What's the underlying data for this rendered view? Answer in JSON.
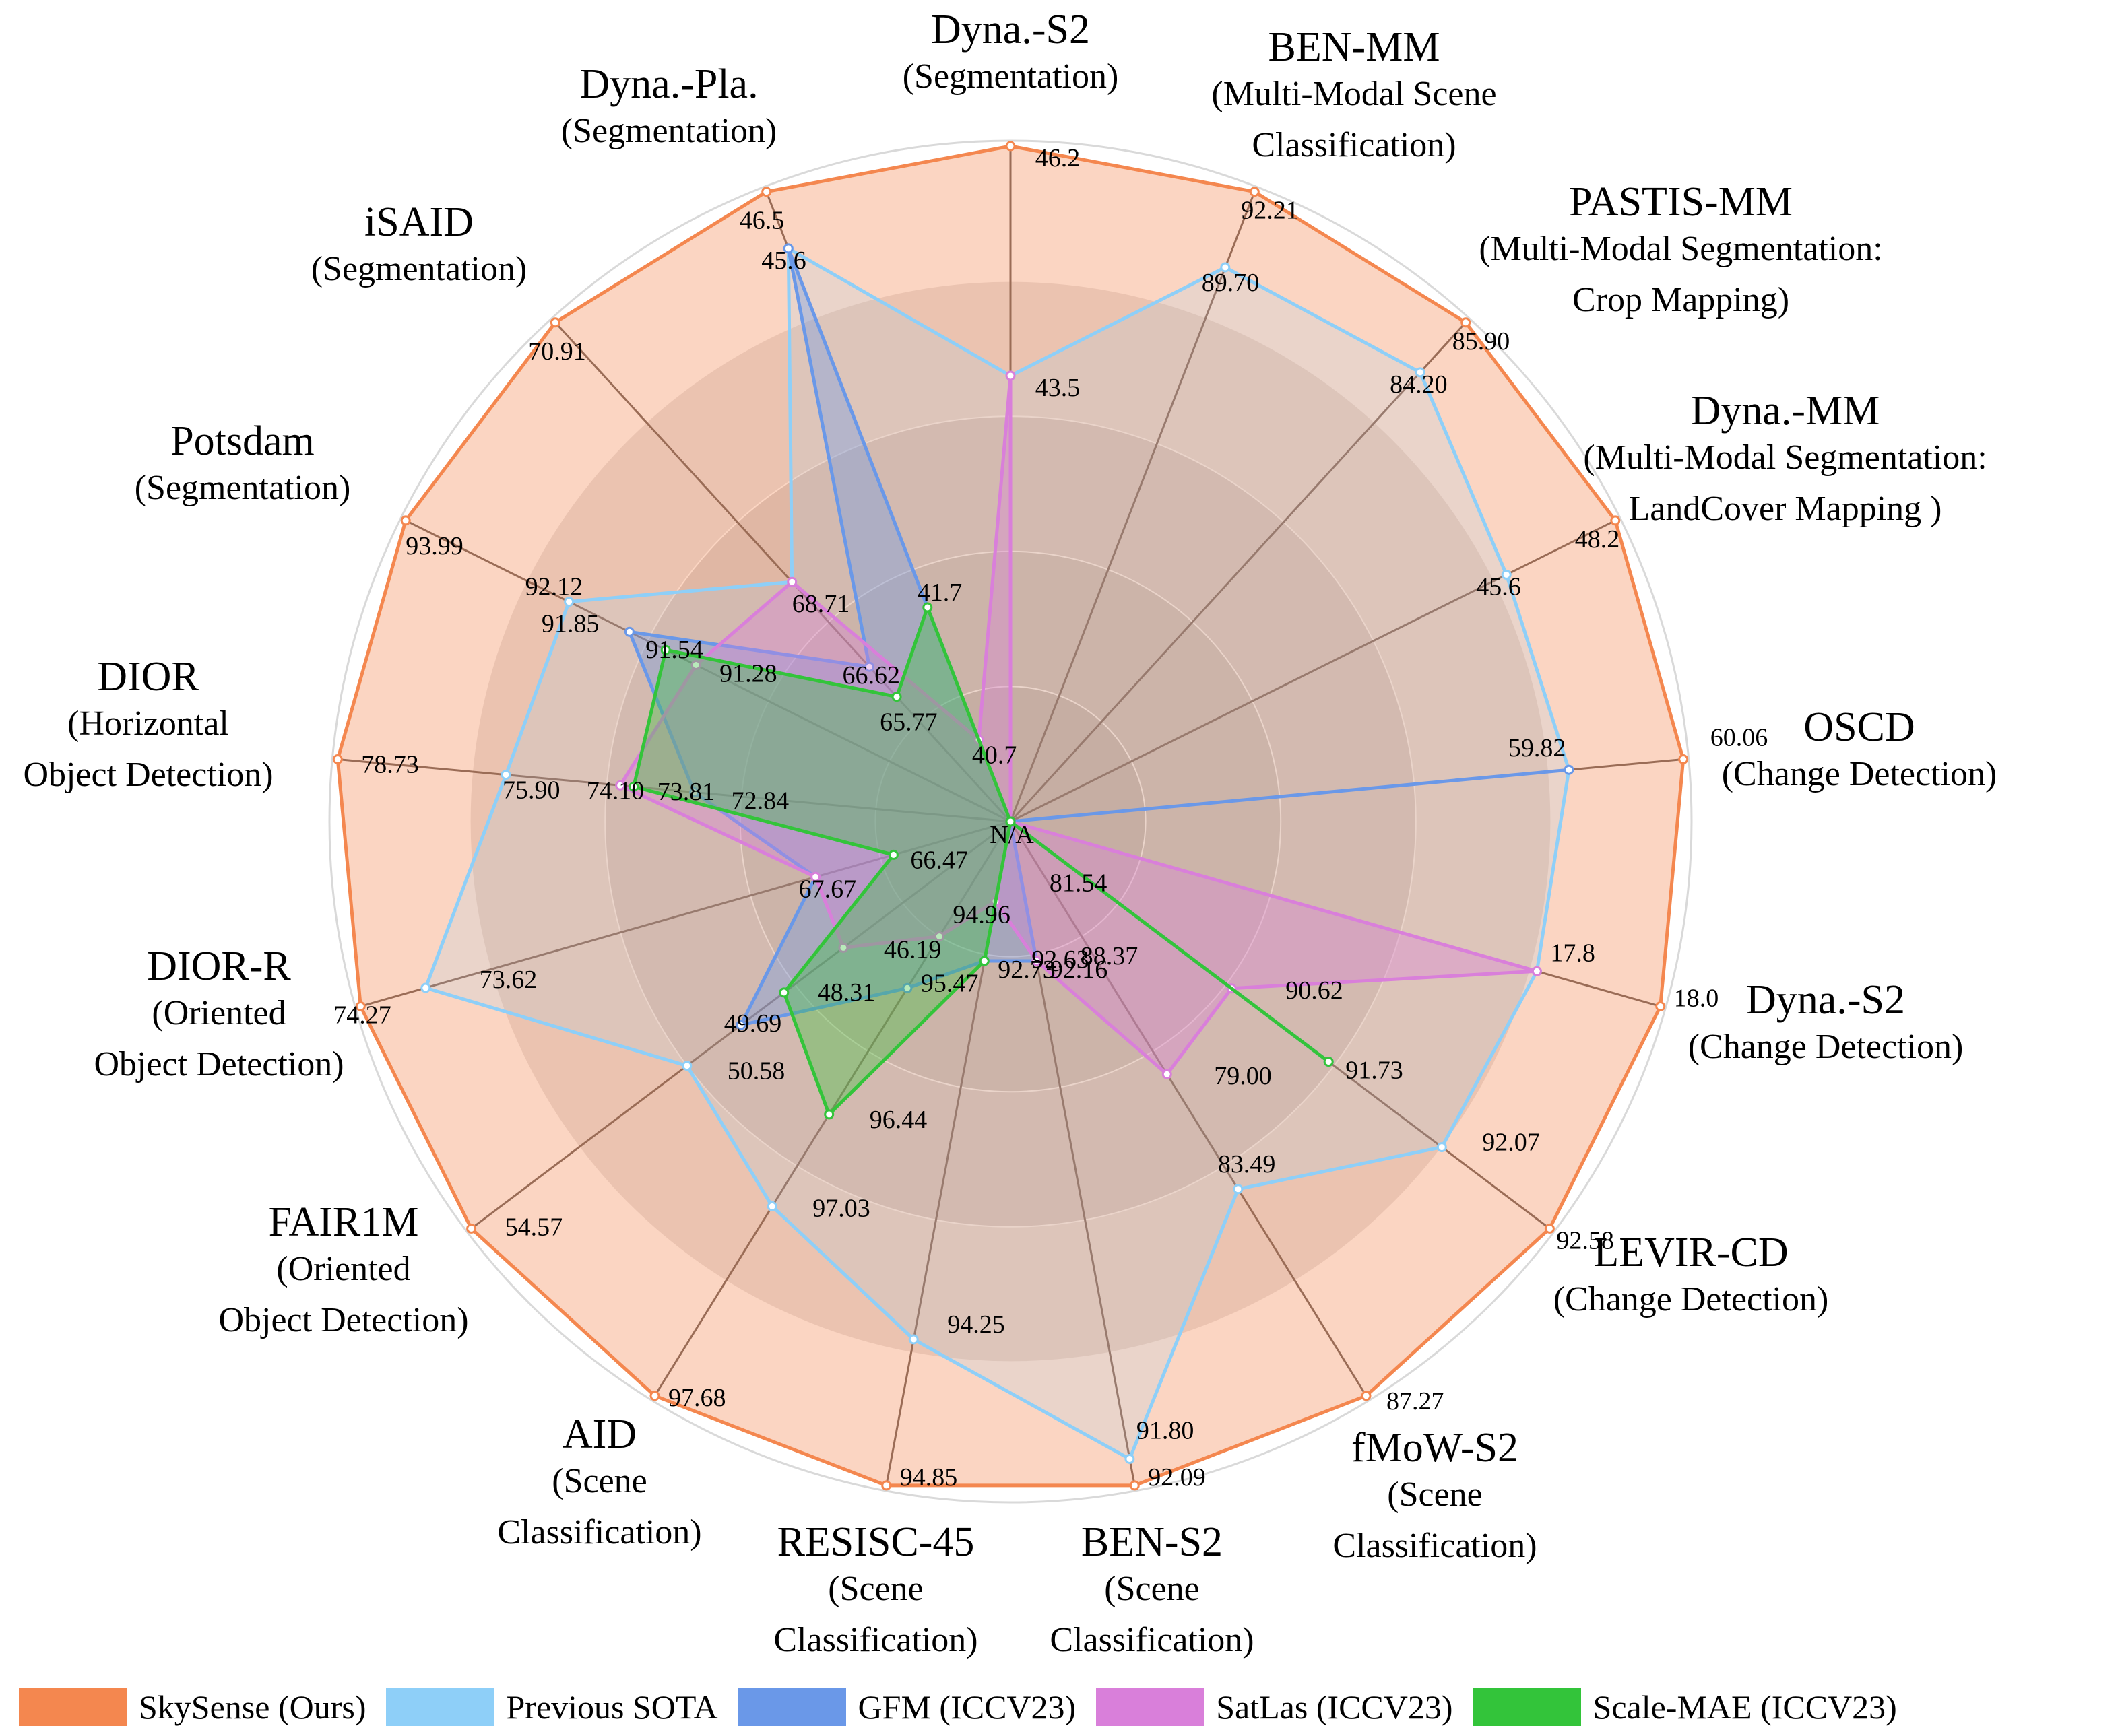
{
  "chart_data": {
    "type": "radar",
    "center_label": "N/A",
    "axes": [
      {
        "name": "Dyna.-S2",
        "task": [
          "(Segmentation)"
        ]
      },
      {
        "name": "BEN-MM",
        "task": [
          "(Multi-Modal Scene",
          "Classification)"
        ]
      },
      {
        "name": "PASTIS-MM",
        "task": [
          "(Multi-Modal Segmentation:",
          "Crop Mapping)"
        ]
      },
      {
        "name": "Dyna.-MM",
        "task": [
          "(Multi-Modal Segmentation:",
          "LandCover Mapping )"
        ]
      },
      {
        "name": "OSCD",
        "task": [
          "(Change Detection)"
        ]
      },
      {
        "name": "Dyna.-S2",
        "task": [
          "(Change Detection)"
        ]
      },
      {
        "name": "LEVIR-CD",
        "task": [
          "(Change Detection)"
        ]
      },
      {
        "name": "fMoW-S2",
        "task": [
          "(Scene",
          "Classification)"
        ]
      },
      {
        "name": "BEN-S2",
        "task": [
          "(Scene",
          "Classification)"
        ]
      },
      {
        "name": "RESISC-45",
        "task": [
          "(Scene",
          "Classification)"
        ]
      },
      {
        "name": "AID",
        "task": [
          "(Scene",
          "Classification)"
        ]
      },
      {
        "name": "FAIR1M",
        "task": [
          "(Oriented",
          "Object Detection)"
        ]
      },
      {
        "name": "DIOR-R",
        "task": [
          "(Oriented",
          "Object Detection)"
        ]
      },
      {
        "name": "DIOR",
        "task": [
          "(Horizontal",
          "Object Detection)"
        ]
      },
      {
        "name": "Potsdam",
        "task": [
          "(Segmentation)"
        ]
      },
      {
        "name": "iSAID",
        "task": [
          "(Segmentation)"
        ]
      },
      {
        "name": "Dyna.-Pla.",
        "task": [
          "(Segmentation)"
        ]
      }
    ],
    "series": [
      {
        "name": "SkySense (Ours)",
        "color": "#F4874F",
        "values": [
          46.2,
          92.21,
          85.9,
          48.2,
          60.06,
          18.0,
          92.58,
          87.27,
          92.09,
          94.85,
          97.68,
          54.57,
          74.27,
          78.73,
          93.99,
          70.91,
          46.5
        ],
        "labels": [
          "46.2",
          "92.21",
          "85.90",
          "48.2",
          "60.06",
          "18.0",
          "92.58",
          "87.27",
          "92.09",
          "94.85",
          "97.68",
          "54.57",
          "74.27",
          "78.73",
          "93.99",
          "70.91",
          "46.5"
        ]
      },
      {
        "name": "Previous SOTA",
        "color": "#8ECFF8",
        "values": [
          43.5,
          89.7,
          84.2,
          45.6,
          59.82,
          17.8,
          92.07,
          83.49,
          91.8,
          94.25,
          97.03,
          50.58,
          73.62,
          75.9,
          92.12,
          68.71,
          45.6
        ],
        "labels": [
          "43.5",
          "89.70",
          "84.20",
          "45.6",
          "59.82",
          "17.8",
          "92.07",
          "83.49",
          "91.80",
          "94.25",
          "97.03",
          "50.58",
          "73.62",
          "75.90",
          "92.12",
          "68.71",
          "45.6"
        ]
      },
      {
        "name": "GFM (ICCV23)",
        "color": "#6A98E8",
        "values": [
          null,
          null,
          null,
          null,
          59.82,
          null,
          91.73,
          null,
          92.16,
          92.73,
          95.47,
          49.69,
          67.67,
          72.84,
          91.85,
          66.62,
          45.6
        ],
        "labels": [
          "",
          "",
          "",
          "",
          "",
          "",
          "91.73",
          "",
          "92.16",
          "92.73",
          "95.47",
          "49.69",
          "67.67",
          "72.84",
          "91.85",
          "66.62",
          ""
        ]
      },
      {
        "name": "SatLas (ICCV23)",
        "color": "#D97FDA",
        "values": [
          43.5,
          null,
          null,
          null,
          null,
          17.8,
          90.62,
          79.0,
          88.37,
          81.54,
          94.96,
          46.19,
          67.67,
          74.1,
          91.28,
          68.71,
          40.7
        ],
        "labels": [
          "",
          "",
          "",
          "",
          "",
          "",
          "90.62",
          "79.00",
          "88.37",
          "81.54",
          "94.96",
          "46.19",
          "",
          "74.10",
          "91.28",
          "",
          "40.7"
        ]
      },
      {
        "name": "Scale-MAE (ICCV23)",
        "color": "#33C43A",
        "values": [
          null,
          null,
          null,
          null,
          null,
          null,
          92.07,
          null,
          null,
          92.63,
          96.44,
          48.31,
          66.47,
          73.81,
          91.54,
          65.77,
          41.7
        ],
        "labels": [
          "",
          "",
          "",
          "",
          "",
          "",
          "",
          "",
          "",
          "92.63",
          "96.44",
          "48.31",
          "66.47",
          "73.81",
          "91.54",
          "65.77",
          "41.7"
        ]
      }
    ]
  },
  "legend": {
    "items": [
      {
        "label": "SkySense (Ours)",
        "color": "#F4874F"
      },
      {
        "label": "Previous SOTA",
        "color": "#8ECFF8"
      },
      {
        "label": "GFM (ICCV23)",
        "color": "#6A98E8"
      },
      {
        "label": "SatLas (ICCV23)",
        "color": "#D97FDA"
      },
      {
        "label": "Scale-MAE (ICCV23)",
        "color": "#33C43A"
      }
    ]
  }
}
